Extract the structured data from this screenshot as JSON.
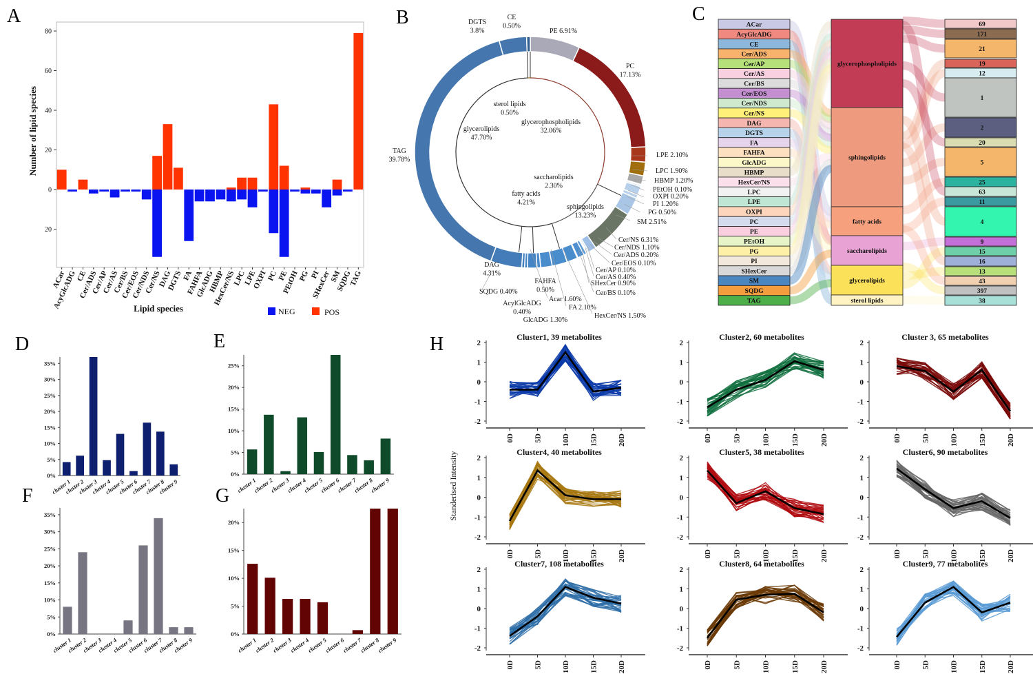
{
  "panels": {
    "A": "A",
    "B": "B",
    "C": "C",
    "D": "D",
    "E": "E",
    "F": "F",
    "G": "G",
    "H": "H"
  },
  "chart_data": [
    {
      "id": "A",
      "type": "bar",
      "xlabel": "Lipid species",
      "ylabel": "Number of lipid species",
      "ylim": [
        -35,
        82
      ],
      "yticks": [
        -20,
        0,
        20,
        40,
        60,
        80
      ],
      "legend_position": "bottom-right",
      "colors": {
        "NEG": "#0a14f0",
        "POS": "#ff3300"
      },
      "categories": [
        "ACar",
        "AcyGlcADG",
        "CE",
        "Cer/ADS",
        "Cer/AP",
        "Cer/AS",
        "Cer/BS",
        "Cer/EOS",
        "Cer/NDS",
        "Cer/NS",
        "DAG",
        "DGTS",
        "FA",
        "FAHFA",
        "GlcADG",
        "HBMP",
        "HexCer/NS",
        "LPC",
        "LPE",
        "OXPI",
        "PC",
        "PE",
        "PEtOH",
        "PG",
        "PI",
        "SHexCer",
        "SM",
        "SQDG",
        "TAG"
      ],
      "series": [
        {
          "name": "NEG",
          "values": [
            0,
            1,
            0,
            2,
            1,
            4,
            1,
            1,
            5,
            34,
            0,
            0,
            26,
            6,
            6,
            5,
            6,
            5,
            9,
            1,
            22,
            34,
            1,
            2,
            2,
            9,
            3,
            1,
            0
          ]
        },
        {
          "name": "POS",
          "values": [
            10,
            0,
            5,
            0,
            0,
            0,
            0,
            0,
            0,
            17,
            33,
            11,
            0,
            0,
            0,
            0,
            1,
            6,
            6,
            0,
            43,
            12,
            0,
            1,
            0,
            0,
            5,
            0,
            79
          ]
        }
      ]
    },
    {
      "id": "B",
      "type": "pie",
      "outer": [
        {
          "label": "PE",
          "value": 6.91,
          "color": "#a9a9b8"
        },
        {
          "label": "PC",
          "value": 17.13,
          "color": "#8b1a1a"
        },
        {
          "label": "LPE",
          "value": 2.1,
          "color": "#a8381c"
        },
        {
          "label": "LPC",
          "value": 1.9,
          "color": "#a06e0c"
        },
        {
          "label": "HBMP",
          "value": 1.2,
          "color": "#a8a8a8"
        },
        {
          "label": "PEtOH",
          "value": 0.1,
          "color": "#b9d0ea"
        },
        {
          "label": "OXPI",
          "value": 0.2,
          "color": "#b9d0ea"
        },
        {
          "label": "PI",
          "value": 1.2,
          "color": "#b9d0ea"
        },
        {
          "label": "PG",
          "value": 0.5,
          "color": "#b9d0ea"
        },
        {
          "label": "SM",
          "value": 2.51,
          "color": "#a9c6e6"
        },
        {
          "label": "Cer/NS",
          "value": 6.31,
          "color": "#6b7566"
        },
        {
          "label": "Cer/NDS",
          "value": 1.1,
          "color": "#9fbfe6"
        },
        {
          "label": "Cer/ADS",
          "value": 0.2,
          "color": "#9fbfe6"
        },
        {
          "label": "Cer/EOS",
          "value": 0.1,
          "color": "#8fb3e0"
        },
        {
          "label": "Cer/AP",
          "value": 0.1,
          "color": "#5c9ad6"
        },
        {
          "label": "Cer/AS",
          "value": 0.4,
          "color": "#5c9ad6"
        },
        {
          "label": "SHexCer",
          "value": 0.9,
          "color": "#4f90d0"
        },
        {
          "label": "Cer/BS",
          "value": 0.1,
          "color": "#4f90d0"
        },
        {
          "label": "HexCer/NS",
          "value": 1.5,
          "color": "#4a8dcd"
        },
        {
          "label": "FA",
          "value": 2.1,
          "color": "#4a8dcd"
        },
        {
          "label": "Acar",
          "value": 1.6,
          "color": "#4a8dcd"
        },
        {
          "label": "FAHFA",
          "value": 0.5,
          "color": "#4a8acb"
        },
        {
          "label": "GlcADG",
          "value": 1.3,
          "color": "#4585c6"
        },
        {
          "label": "AcylGlcADG",
          "value": 0.4,
          "color": "#4585c6"
        },
        {
          "label": "SQDG",
          "value": 0.4,
          "color": "#4580c0"
        },
        {
          "label": "DAG",
          "value": 4.31,
          "color": "#437cb8"
        },
        {
          "label": "TAG",
          "value": 39.78,
          "color": "#4577ae"
        },
        {
          "label": "DGTS",
          "value": 3.8,
          "color": "#4577ae"
        },
        {
          "label": "CE",
          "value": 0.5,
          "color": "#2f5f8f"
        }
      ],
      "inner": [
        {
          "label": "glycerophospholipids",
          "value": 32.06,
          "color": "#8b3a2a"
        },
        {
          "label": "sphingolipids",
          "value": 13.23,
          "color": "#555"
        },
        {
          "label": "fatty acids",
          "value": 4.21,
          "color": "#333"
        },
        {
          "label": "saccharolipids",
          "value": 2.3,
          "color": "#333"
        },
        {
          "label": "glycerolipids",
          "value": 47.7,
          "color": "#333"
        },
        {
          "label": "sterol lipids",
          "value": 0.5,
          "color": "#a06e0c"
        }
      ],
      "labels": [
        {
          "lines": [
            "CE",
            "0.50%"
          ]
        },
        {
          "lines": [
            "DGTS",
            "3.8%"
          ]
        },
        {
          "lines": [
            "PE 6.91%"
          ]
        },
        {
          "lines": [
            "PC",
            "17.13%"
          ]
        },
        {
          "lines": [
            "LPE 2.10%"
          ]
        },
        {
          "lines": [
            "LPC 1.90%"
          ]
        },
        {
          "lines": [
            "HBMP 1.20%"
          ]
        },
        {
          "lines": [
            "PEtOH 0.10%"
          ]
        },
        {
          "lines": [
            "OXPI 0.20%"
          ]
        },
        {
          "lines": [
            "PI 1.20%"
          ]
        },
        {
          "lines": [
            "PG 0.50%"
          ]
        },
        {
          "lines": [
            "SM 2.51%"
          ]
        },
        {
          "lines": [
            "Cer/NS 6.31%"
          ]
        },
        {
          "lines": [
            "Cer/NDS 1.10%"
          ]
        },
        {
          "lines": [
            "Cer/ADS 0.20%"
          ]
        },
        {
          "lines": [
            "Cer/EOS 0.10%"
          ]
        },
        {
          "lines": [
            "Cer/AP 0.10%"
          ]
        },
        {
          "lines": [
            "Cer/AS 0.40%"
          ]
        },
        {
          "lines": [
            "SHexCer 0.90%"
          ]
        },
        {
          "lines": [
            "Cer/BS 0.10%"
          ]
        },
        {
          "lines": [
            "HexCer/NS 1.50%"
          ]
        },
        {
          "lines": [
            "FA 2.10%"
          ]
        },
        {
          "lines": [
            "Acar 1.60%"
          ]
        },
        {
          "lines": [
            "FAHFA",
            "0.50%"
          ]
        },
        {
          "lines": [
            "SQDG 0.40%"
          ]
        },
        {
          "lines": [
            "AcylGlcADG",
            "0.40%"
          ]
        },
        {
          "lines": [
            "GlcADG 1.30%"
          ]
        },
        {
          "lines": [
            "DAG",
            "4.31%"
          ]
        },
        {
          "lines": [
            "TAG",
            "39.78%"
          ]
        },
        {
          "lines": [
            "sterol lipids",
            "0.50%"
          ]
        },
        {
          "lines": [
            "glycerophospholipids",
            "32.06%"
          ]
        },
        {
          "lines": [
            "glycerolipids",
            "47.70%"
          ]
        },
        {
          "lines": [
            "saccharolipids",
            "2.30%"
          ]
        },
        {
          "lines": [
            "fatty acids",
            "4.21%"
          ]
        },
        {
          "lines": [
            "sphingolipids",
            "13.23%"
          ]
        }
      ]
    },
    {
      "id": "C",
      "type": "sankey",
      "left": [
        {
          "label": "ACar",
          "color": "#c9c9e6",
          "group": 2
        },
        {
          "label": "AcyGlcADG",
          "color": "#f08a80",
          "group": 3
        },
        {
          "label": "CE",
          "color": "#8db8dc",
          "group": 5
        },
        {
          "label": "Cer/ADS",
          "color": "#f7b26b",
          "group": 1
        },
        {
          "label": "Cer/AP",
          "color": "#b6e07a",
          "group": 1
        },
        {
          "label": "Cer/AS",
          "color": "#f9d0e0",
          "group": 1
        },
        {
          "label": "Cer/BS",
          "color": "#dcdcdc",
          "group": 1
        },
        {
          "label": "Cer/EOS",
          "color": "#c38fd0",
          "group": 1
        },
        {
          "label": "Cer/NDS",
          "color": "#cfe9cf",
          "group": 1
        },
        {
          "label": "Cer/NS",
          "color": "#fff07a",
          "group": 1
        },
        {
          "label": "DAG",
          "color": "#f4b6ae",
          "group": 4
        },
        {
          "label": "DGTS",
          "color": "#b7d3ec",
          "group": 4
        },
        {
          "label": "FA",
          "color": "#e6d3ec",
          "group": 2
        },
        {
          "label": "FAHFA",
          "color": "#fde0c0",
          "group": 2
        },
        {
          "label": "GlcADG",
          "color": "#fdf8c8",
          "group": 3
        },
        {
          "label": "HBMP",
          "color": "#e8ddc8",
          "group": 0
        },
        {
          "label": "HexCer/NS",
          "color": "#fbe0ec",
          "group": 1
        },
        {
          "label": "LPC",
          "color": "#f2f2f2",
          "group": 0
        },
        {
          "label": "LPE",
          "color": "#bfe6d4",
          "group": 0
        },
        {
          "label": "OXPI",
          "color": "#fdd5bd",
          "group": 0
        },
        {
          "label": "PC",
          "color": "#d3dbec",
          "group": 0
        },
        {
          "label": "PE",
          "color": "#f9cfe0",
          "group": 0
        },
        {
          "label": "PEtOH",
          "color": "#e6f4c8",
          "group": 0
        },
        {
          "label": "PG",
          "color": "#fff0a8",
          "group": 0
        },
        {
          "label": "PI",
          "color": "#f2e8dc",
          "group": 0
        },
        {
          "label": "SHexCer",
          "color": "#d8d8d8",
          "group": 1
        },
        {
          "label": "SM",
          "color": "#4a86c0",
          "group": 1
        },
        {
          "label": "SQDG",
          "color": "#f49d3f",
          "group": 3
        },
        {
          "label": "TAG",
          "color": "#4daf4a",
          "group": 4
        }
      ],
      "middle": [
        {
          "label": "glycerophospholipids",
          "color": "#c23c55"
        },
        {
          "label": "sphingolipids",
          "color": "#ee9a7e"
        },
        {
          "label": "fatty acids",
          "color": "#f6a07e"
        },
        {
          "label": "saccharolipids",
          "color": "#e8a3d4"
        },
        {
          "label": "glycerolipids",
          "color": "#fbe05a"
        },
        {
          "label": "sterol lipids",
          "color": "#fff3c4"
        }
      ],
      "right": [
        {
          "label": "69",
          "color": "#f2c9c9"
        },
        {
          "label": "171",
          "color": "#8b6c50"
        },
        {
          "label": "21",
          "color": "#f4b66a"
        },
        {
          "label": "19",
          "color": "#d9655a"
        },
        {
          "label": "12",
          "color": "#d6ecf0"
        },
        {
          "label": "1",
          "color": "#c0c4c0"
        },
        {
          "label": "2",
          "color": "#5c5f80"
        },
        {
          "label": "20",
          "color": "#d9dcb0"
        },
        {
          "label": "5",
          "color": "#f4b66a"
        },
        {
          "label": "25",
          "color": "#2cb3a0"
        },
        {
          "label": "63",
          "color": "#c8e6d8"
        },
        {
          "label": "11",
          "color": "#3a9aa0"
        },
        {
          "label": "4",
          "color": "#33f5b0"
        },
        {
          "label": "9",
          "color": "#c56fd8"
        },
        {
          "label": "15",
          "color": "#6fcfa8"
        },
        {
          "label": "16",
          "color": "#9eb0d8"
        },
        {
          "label": "13",
          "color": "#b7e07a"
        },
        {
          "label": "43",
          "color": "#f0d0b0"
        },
        {
          "label": "397",
          "color": "#c0c0c0"
        },
        {
          "label": "38",
          "color": "#a8e0d8"
        }
      ]
    },
    {
      "id": "D",
      "type": "bar",
      "color": "#0d1f6e",
      "ylim": [
        0,
        37
      ],
      "yticks": [
        0,
        5,
        10,
        15,
        20,
        25,
        30,
        35
      ],
      "categories": [
        "cluster 1",
        "cluster 2",
        "cluster 3",
        "cluster 4",
        "cluster 5",
        "cluster 6",
        "cluster 7",
        "cluster 8",
        "cluster 9"
      ],
      "values": [
        4.2,
        6.2,
        37,
        4.8,
        13,
        1.4,
        16.5,
        13.7,
        3.5
      ]
    },
    {
      "id": "E",
      "type": "bar",
      "color": "#0f4a2a",
      "ylim": [
        0,
        27.5
      ],
      "yticks": [
        0,
        5,
        10,
        15,
        20,
        25
      ],
      "categories": [
        "cluster 1",
        "cluster 2",
        "cluster 3",
        "cluster 4",
        "cluster 5",
        "cluster 6",
        "cluster 7",
        "cluster 8",
        "cluster 9"
      ],
      "values": [
        5.7,
        13.7,
        0.7,
        13.1,
        5.1,
        27.5,
        4.4,
        3.2,
        8.2
      ]
    },
    {
      "id": "F",
      "type": "bar",
      "color": "#777582",
      "ylim": [
        0,
        37
      ],
      "yticks": [
        0,
        5,
        10,
        15,
        20,
        25,
        30,
        35
      ],
      "categories": [
        "cluster 1",
        "cluster 2",
        "cluster 3",
        "cluster 4",
        "cluster 5",
        "cluster 6",
        "cluster 7",
        "cluster 8",
        "cluster 9"
      ],
      "values": [
        8,
        24,
        0,
        0,
        4,
        26,
        34,
        2,
        2
      ]
    },
    {
      "id": "G",
      "type": "bar",
      "color": "#620404",
      "ylim": [
        0,
        22.5
      ],
      "yticks": [
        0,
        5,
        10,
        15,
        20
      ],
      "categories": [
        "cluster 1",
        "cluster 2",
        "cluster 3",
        "cluster 4",
        "cluster 5",
        "cluster 6",
        "cluster 7",
        "cluster 8",
        "cluster 9"
      ],
      "values": [
        12.6,
        10.1,
        6.3,
        6.3,
        5.7,
        0,
        0.7,
        22.5,
        22.5
      ]
    },
    {
      "id": "H",
      "type": "line",
      "ylabel": "Standerised Intensity",
      "ylim": [
        -2,
        2
      ],
      "yticks": [
        -2,
        -1,
        0,
        1,
        2
      ],
      "x": [
        "0D",
        "5D",
        "10D",
        "15D",
        "20D"
      ],
      "clusters": [
        {
          "title": "Cluster1, 39 metabolites",
          "color": "#0b3aa8",
          "mean": [
            -0.4,
            -0.4,
            1.5,
            -0.5,
            -0.3
          ]
        },
        {
          "title": "Cluster2, 60 metabolites",
          "color": "#127040",
          "mean": [
            -1.3,
            -0.4,
            0.1,
            1.05,
            0.6
          ]
        },
        {
          "title": "Cluster 3, 65 metabolites",
          "color": "#7a0a0a",
          "mean": [
            0.8,
            0.55,
            -0.5,
            0.6,
            -1.5
          ]
        },
        {
          "title": "Cluster4, 40 metabolites",
          "color": "#a87812",
          "mean": [
            -1.2,
            1.35,
            0.1,
            -0.1,
            -0.1
          ]
        },
        {
          "title": "Cluster5, 38 metabolites",
          "color": "#b00c10",
          "mean": [
            1.35,
            -0.3,
            0.3,
            -0.55,
            -0.85
          ]
        },
        {
          "title": "Cluster6, 90 metabolites",
          "color": "#666666",
          "mean": [
            1.45,
            0.4,
            -0.55,
            -0.2,
            -1.05
          ]
        },
        {
          "title": "Cluster7, 108 metabolites",
          "color": "#2f6ea8",
          "mean": [
            -1.4,
            -0.4,
            1.1,
            0.55,
            0.25
          ]
        },
        {
          "title": "Cluster8, 64 metabolites",
          "color": "#6b3a06",
          "mean": [
            -1.5,
            0.45,
            0.7,
            0.75,
            -0.2
          ]
        },
        {
          "title": "Cluster9, 77 metabolites",
          "color": "#5b9bd5",
          "mean": [
            -1.45,
            0.3,
            1.1,
            -0.2,
            0.3
          ]
        }
      ]
    }
  ]
}
